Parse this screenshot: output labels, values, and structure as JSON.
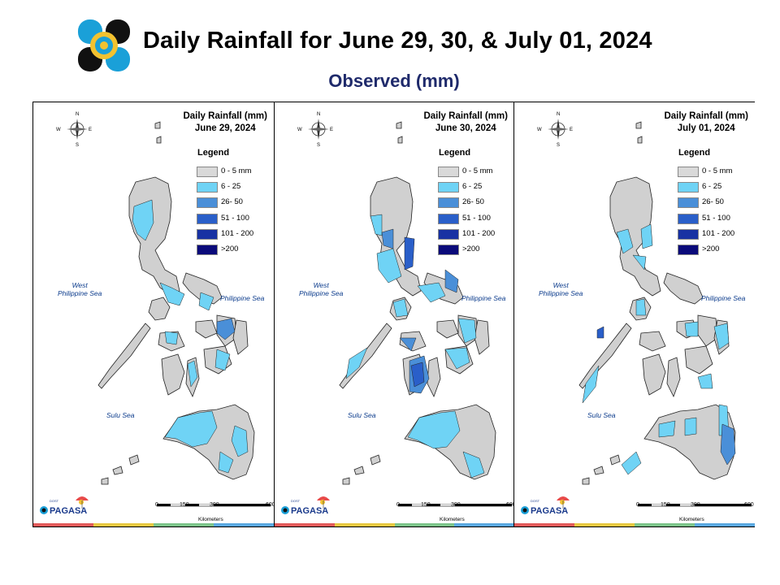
{
  "header": {
    "title": "Daily Rainfall for June 29, 30, & July 01, 2024",
    "subtitle": "Observed (mm)"
  },
  "compass": {
    "n": "N",
    "s": "S",
    "e": "E",
    "w": "W"
  },
  "legend": {
    "title": "Legend",
    "classes": [
      {
        "label": "0 - 5 mm",
        "color": "#d9d9d9"
      },
      {
        "label": "6 - 25",
        "color": "#6fd3f5"
      },
      {
        "label": "26- 50",
        "color": "#4a8fd8"
      },
      {
        "label": "51 - 100",
        "color": "#2a5fc9"
      },
      {
        "label": "101 - 200",
        "color": "#1832a3"
      },
      {
        "label": ">200",
        "color": "#0a0a7a"
      }
    ]
  },
  "labels": {
    "west_sea": "West\nPhilippine Sea",
    "phil_sea": "Philippine Sea",
    "sulu_sea": "Sulu Sea"
  },
  "scale": {
    "ticks": [
      "0",
      "150",
      "300",
      "600"
    ],
    "unit": "Kilometers"
  },
  "panels": [
    {
      "title": "Daily Rainfall (mm)",
      "date": "June 29, 2024"
    },
    {
      "title": "Daily Rainfall (mm)",
      "date": "June 30, 2024"
    },
    {
      "title": "Daily Rainfall (mm)",
      "date": "July 01, 2024"
    }
  ],
  "brand": {
    "name": "PAGASA",
    "dost": "DOST"
  },
  "colors": {
    "land": "#d0d0d0",
    "title_blue": "#1f2a6b",
    "strip": [
      "#e15a5a",
      "#e8c840",
      "#7cc48a",
      "#5aa8e0"
    ]
  }
}
